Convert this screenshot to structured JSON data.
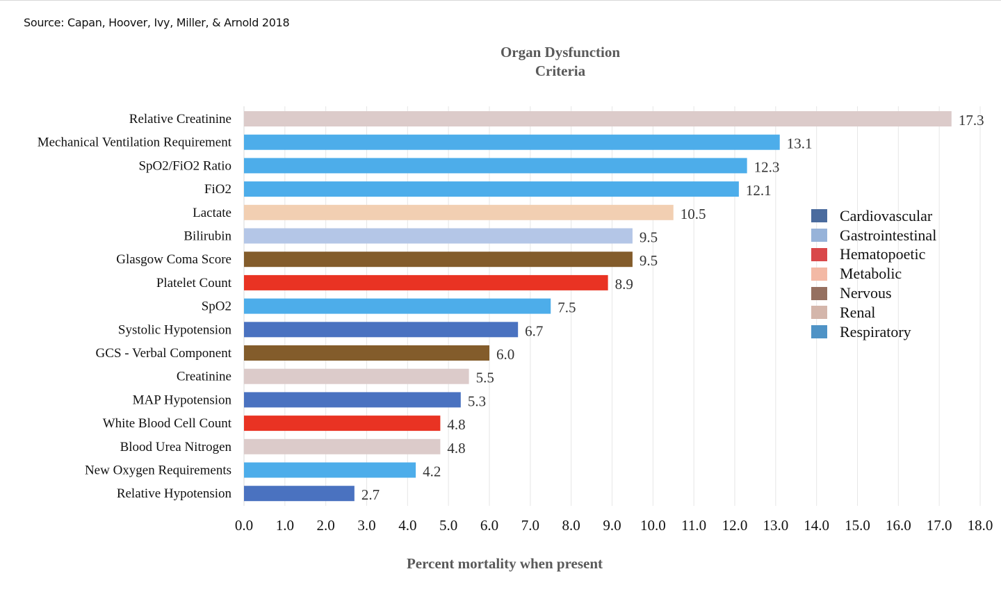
{
  "source": "Source:  Capan, Hoover, Ivy, Miller, & Arnold 2018",
  "chart_data": {
    "type": "bar",
    "orientation": "horizontal",
    "title_lines": [
      "Organ Dysfunction",
      "Criteria"
    ],
    "xlabel": "Percent mortality when present",
    "ylabel": "",
    "xlim": [
      0,
      18
    ],
    "xticks": [
      "0.0",
      "1.0",
      "2.0",
      "3.0",
      "4.0",
      "5.0",
      "6.0",
      "7.0",
      "8.0",
      "9.0",
      "10.0",
      "11.0",
      "12.0",
      "13.0",
      "14.0",
      "15.0",
      "16.0",
      "17.0",
      "18.0"
    ],
    "grid": "vertical",
    "legend_position": "right",
    "categories": [
      "Relative Creatinine",
      "Mechanical Ventilation Requirement",
      "SpO2/FiO2 Ratio",
      "FiO2",
      "Lactate",
      "Bilirubin",
      "Glasgow Coma Score",
      "Platelet Count",
      "SpO2",
      "Systolic Hypotension",
      "GCS - Verbal Component",
      "Creatinine",
      "MAP Hypotension",
      "White Blood Cell Count",
      "Blood Urea Nitrogen",
      "New Oxygen Requirements",
      "Relative Hypotension"
    ],
    "values": [
      17.3,
      13.1,
      12.3,
      12.1,
      10.5,
      9.5,
      9.5,
      8.9,
      7.5,
      6.7,
      6.0,
      5.5,
      5.3,
      4.8,
      4.8,
      4.2,
      2.7
    ],
    "value_labels": [
      "17.3",
      "13.1",
      "12.3",
      "12.1",
      "10.5",
      "9.5",
      "9.5",
      "8.9",
      "7.5",
      "6.7",
      "6.0",
      "5.5",
      "5.3",
      "4.8",
      "4.8",
      "4.2",
      "2.7"
    ],
    "groups": [
      "Renal",
      "Respiratory",
      "Respiratory",
      "Respiratory",
      "Metabolic",
      "Gastrointestinal",
      "Nervous",
      "Hematopoetic",
      "Respiratory",
      "Cardiovascular",
      "Nervous",
      "Renal",
      "Cardiovascular",
      "Hematopoetic",
      "Renal",
      "Respiratory",
      "Cardiovascular"
    ],
    "bar_colors": {
      "Cardiovascular": "#4a72c0",
      "Gastrointestinal": "#b4c6e7",
      "Hematopoetic": "#e93323",
      "Metabolic": "#f2cfb2",
      "Nervous": "#835c2b",
      "Renal": "#dccbca",
      "Respiratory": "#4dadea"
    },
    "legend": [
      {
        "name": "Cardiovascular",
        "color": "#4a6b9e"
      },
      {
        "name": "Gastrointestinal",
        "color": "#97b3d9"
      },
      {
        "name": "Hematopoetic",
        "color": "#d9484a"
      },
      {
        "name": "Metabolic",
        "color": "#f3b9a5"
      },
      {
        "name": "Nervous",
        "color": "#957060"
      },
      {
        "name": "Renal",
        "color": "#d4b6ab"
      },
      {
        "name": "Respiratory",
        "color": "#4f93c6"
      }
    ]
  }
}
